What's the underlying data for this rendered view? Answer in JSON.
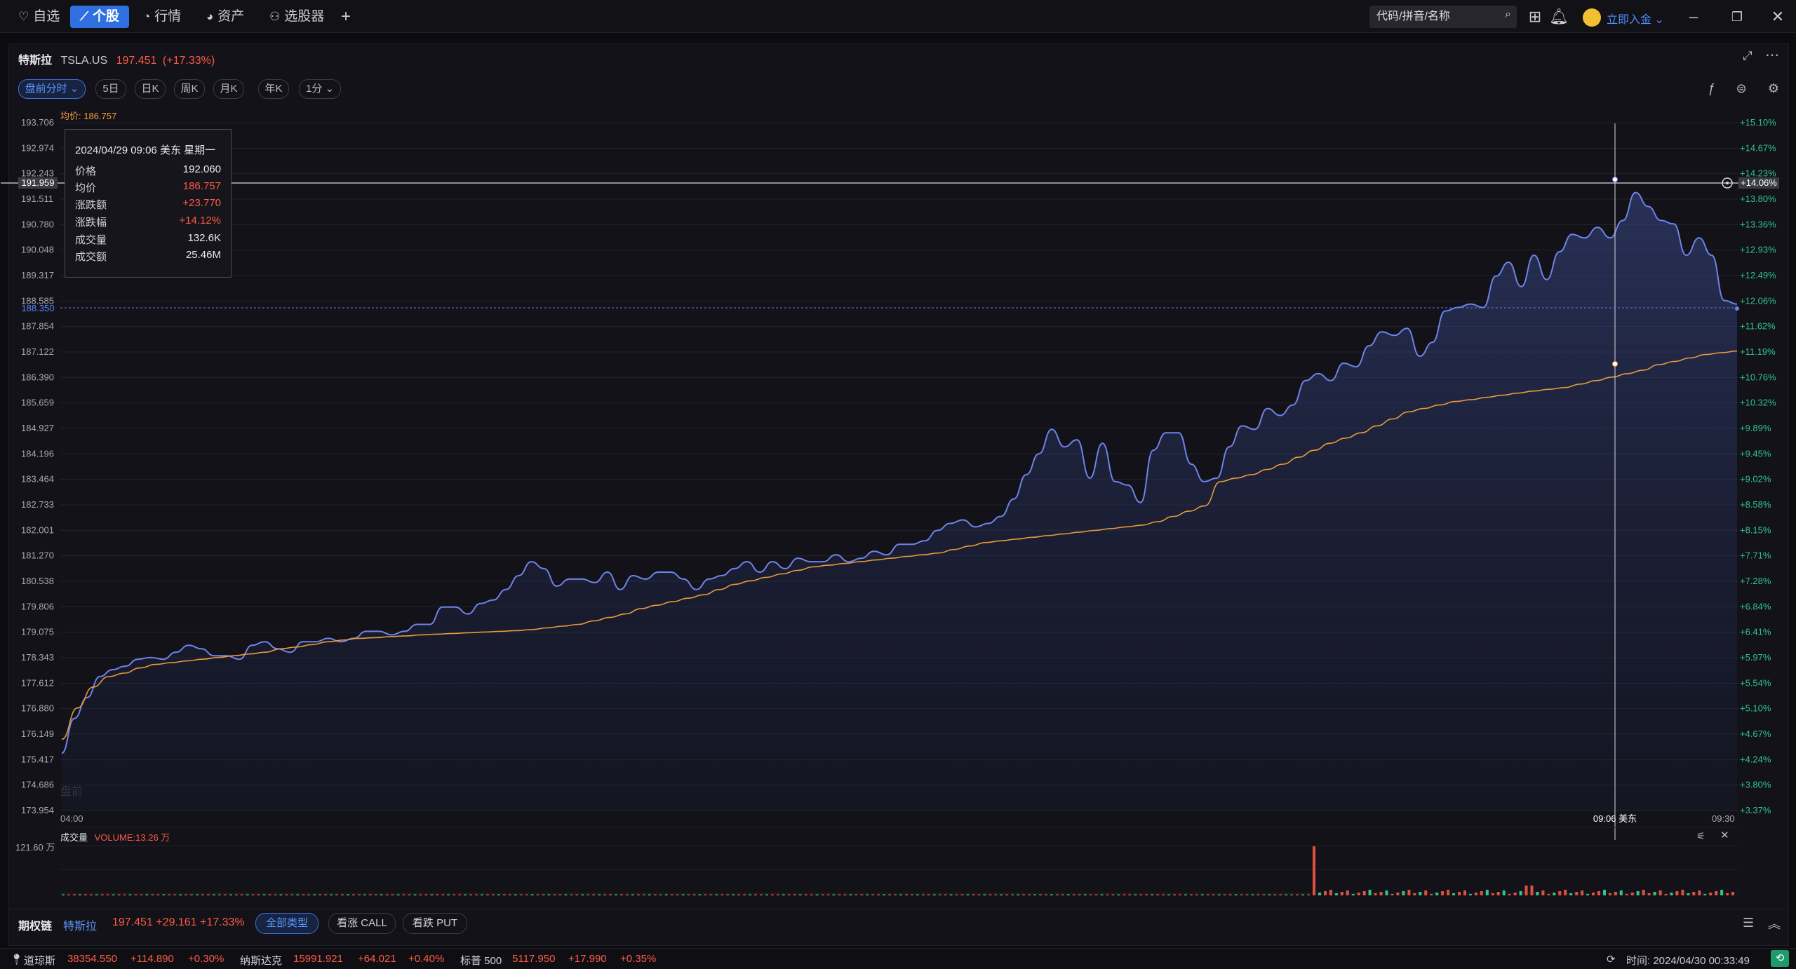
{
  "nav": {
    "items": [
      {
        "icon": "heart-icon",
        "label": "自选"
      },
      {
        "icon": "chart-line-icon",
        "label": "个股",
        "active": true
      },
      {
        "icon": "market-icon",
        "label": "行情"
      },
      {
        "icon": "assets-icon",
        "label": "资产"
      },
      {
        "icon": "screener-icon",
        "label": "选股器"
      }
    ],
    "add_tab": "+",
    "search_placeholder": "代码/拼音/名称",
    "deposit_label": "立即入金"
  },
  "stock": {
    "name": "特斯拉",
    "code": "TSLA.US",
    "price": "197.451",
    "change": "(+17.33%)"
  },
  "periods": {
    "active": "盘前分时",
    "items": [
      "5日",
      "日K",
      "周K",
      "月K",
      "年K",
      "1分"
    ]
  },
  "avg_price_label": "均价: 186.757",
  "premarket_watermark": "盘前",
  "crosshair": {
    "price_label": "191.959",
    "pct_label": "+14.06%",
    "time_label": "09:06 美东",
    "last_price_label": "188.350"
  },
  "tooltip": {
    "title": "2024/04/29 09:06 美东 星期一",
    "rows": [
      {
        "k": "价格",
        "v": "192.060",
        "color": "#e8e9ee"
      },
      {
        "k": "均价",
        "v": "186.757",
        "color": "#ff5a45"
      },
      {
        "k": "涨跌额",
        "v": "+23.770",
        "color": "#ff5a45"
      },
      {
        "k": "涨跌幅",
        "v": "+14.12%",
        "color": "#ff5a45"
      },
      {
        "k": "成交量",
        "v": "132.6K",
        "color": "#e8e9ee"
      },
      {
        "k": "成交额",
        "v": "25.46M",
        "color": "#e8e9ee"
      }
    ]
  },
  "volume": {
    "title": "成交量",
    "value_label": "VOLUME:13.26 万",
    "axis_label": "121.60 万"
  },
  "options_bar": {
    "title": "期权链",
    "stock": "特斯拉",
    "quote": "197.451 +29.161 +17.33%",
    "filters": [
      "全部类型",
      "看涨 CALL",
      "看跌 PUT"
    ]
  },
  "statusbar": {
    "indices": [
      {
        "name": "道琼斯",
        "value": "38354.550",
        "change": "+114.890",
        "pct": "+0.30%"
      },
      {
        "name": "纳斯达克",
        "value": "15991.921",
        "change": "+64.021",
        "pct": "+0.40%"
      },
      {
        "name": "标普 500",
        "value": "5117.950",
        "change": "+17.990",
        "pct": "+0.35%"
      }
    ],
    "time": "时间: 2024/04/30 00:33:49"
  },
  "chart_data": {
    "type": "area",
    "y_ticks": [
      "193.706",
      "192.974",
      "192.243",
      "191.511",
      "190.780",
      "190.048",
      "189.317",
      "188.585",
      "187.854",
      "187.122",
      "186.390",
      "185.659",
      "184.927",
      "184.196",
      "183.464",
      "182.733",
      "182.001",
      "181.270",
      "180.538",
      "179.806",
      "179.075",
      "178.343",
      "177.612",
      "176.880",
      "176.149",
      "175.417",
      "174.686",
      "173.954"
    ],
    "pct_ticks": [
      "+15.10%",
      "+14.67%",
      "+14.23%",
      "+13.80%",
      "+13.36%",
      "+12.93%",
      "+12.49%",
      "+12.06%",
      "+11.62%",
      "+11.19%",
      "+10.76%",
      "+10.32%",
      "+9.89%",
      "+9.45%",
      "+9.02%",
      "+8.58%",
      "+8.15%",
      "+7.71%",
      "+7.28%",
      "+6.84%",
      "+6.41%",
      "+5.97%",
      "+5.54%",
      "+5.10%",
      "+4.67%",
      "+4.24%",
      "+3.80%",
      "+3.37%"
    ],
    "x_labels": [
      "04:00",
      "09:30"
    ],
    "ylim": [
      173.954,
      193.706
    ],
    "price": [
      175.6,
      176.6,
      177.2,
      177.8,
      178.0,
      178.1,
      178.3,
      178.35,
      178.3,
      178.5,
      178.7,
      178.6,
      178.4,
      178.4,
      178.3,
      178.7,
      178.8,
      178.6,
      178.5,
      178.8,
      178.8,
      178.9,
      178.8,
      178.9,
      179.1,
      179.1,
      179.0,
      179.1,
      179.3,
      179.3,
      179.8,
      179.8,
      179.6,
      179.9,
      180.0,
      180.3,
      180.7,
      181.1,
      180.9,
      180.4,
      180.6,
      180.6,
      180.5,
      180.8,
      180.3,
      180.7,
      180.6,
      180.8,
      180.8,
      180.6,
      180.3,
      180.6,
      180.7,
      180.9,
      181.1,
      180.8,
      181.1,
      180.9,
      181.2,
      181.1,
      181.1,
      181.3,
      181.1,
      181.2,
      181.4,
      181.3,
      181.6,
      181.6,
      181.7,
      182.0,
      182.2,
      182.3,
      182.1,
      182.2,
      182.4,
      182.9,
      183.6,
      184.2,
      184.9,
      184.4,
      184.6,
      183.5,
      184.5,
      183.4,
      183.3,
      182.8,
      184.3,
      184.8,
      184.8,
      183.9,
      183.4,
      183.5,
      184.4,
      185.0,
      184.9,
      185.5,
      185.3,
      185.6,
      186.3,
      186.5,
      186.3,
      186.8,
      186.7,
      187.3,
      187.7,
      187.6,
      187.8,
      187.0,
      187.4,
      188.3,
      188.4,
      188.5,
      188.4,
      189.3,
      189.7,
      189.0,
      189.9,
      189.2,
      190.0,
      190.5,
      190.4,
      190.7,
      190.4,
      190.9,
      191.7,
      191.3,
      190.9,
      190.8,
      189.9,
      190.4,
      189.9,
      188.6,
      188.5
    ],
    "avg": [
      176.0,
      176.9,
      177.5,
      177.8,
      177.9,
      178.05,
      178.15,
      178.2,
      178.25,
      178.3,
      178.35,
      178.4,
      178.45,
      178.5,
      178.6,
      178.65,
      178.72,
      178.8,
      178.85,
      178.9,
      178.92,
      178.95,
      178.97,
      179.0,
      179.02,
      179.04,
      179.06,
      179.08,
      179.1,
      179.12,
      179.15,
      179.2,
      179.25,
      179.3,
      179.4,
      179.5,
      179.6,
      179.75,
      179.85,
      179.95,
      180.05,
      180.15,
      180.3,
      180.45,
      180.55,
      180.65,
      180.75,
      180.85,
      180.95,
      181.0,
      181.05,
      181.1,
      181.15,
      181.2,
      181.25,
      181.3,
      181.35,
      181.45,
      181.55,
      181.65,
      181.7,
      181.75,
      181.8,
      181.85,
      181.9,
      181.95,
      182.0,
      182.05,
      182.1,
      182.15,
      182.25,
      182.4,
      182.55,
      182.7,
      183.4,
      183.5,
      183.6,
      183.75,
      183.9,
      184.1,
      184.3,
      184.5,
      184.65,
      184.8,
      185.0,
      185.2,
      185.4,
      185.5,
      185.6,
      185.7,
      185.75,
      185.82,
      185.88,
      185.94,
      186.0,
      186.05,
      186.1,
      186.2,
      186.3,
      186.4,
      186.5,
      186.6,
      186.757,
      186.85,
      186.95,
      187.05,
      187.1,
      187.15
    ],
    "vol_spike_index": 0.747,
    "vol_spike_value": "121.60 万"
  }
}
